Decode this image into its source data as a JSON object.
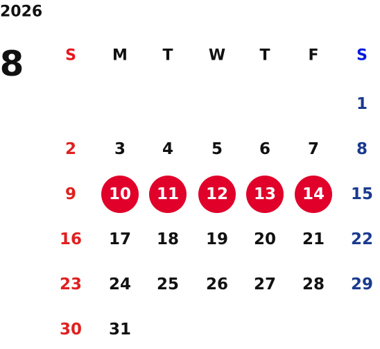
{
  "calendar": {
    "year": "2026",
    "month": "8",
    "weekdays": [
      "S",
      "M",
      "T",
      "W",
      "T",
      "F",
      "S"
    ],
    "weeks": [
      [
        null,
        null,
        null,
        null,
        null,
        null,
        1
      ],
      [
        2,
        3,
        4,
        5,
        6,
        7,
        8
      ],
      [
        9,
        10,
        11,
        12,
        13,
        14,
        15
      ],
      [
        16,
        17,
        18,
        19,
        20,
        21,
        22
      ],
      [
        23,
        24,
        25,
        26,
        27,
        28,
        29
      ],
      [
        30,
        31,
        null,
        null,
        null,
        null,
        null
      ]
    ]
  }
}
